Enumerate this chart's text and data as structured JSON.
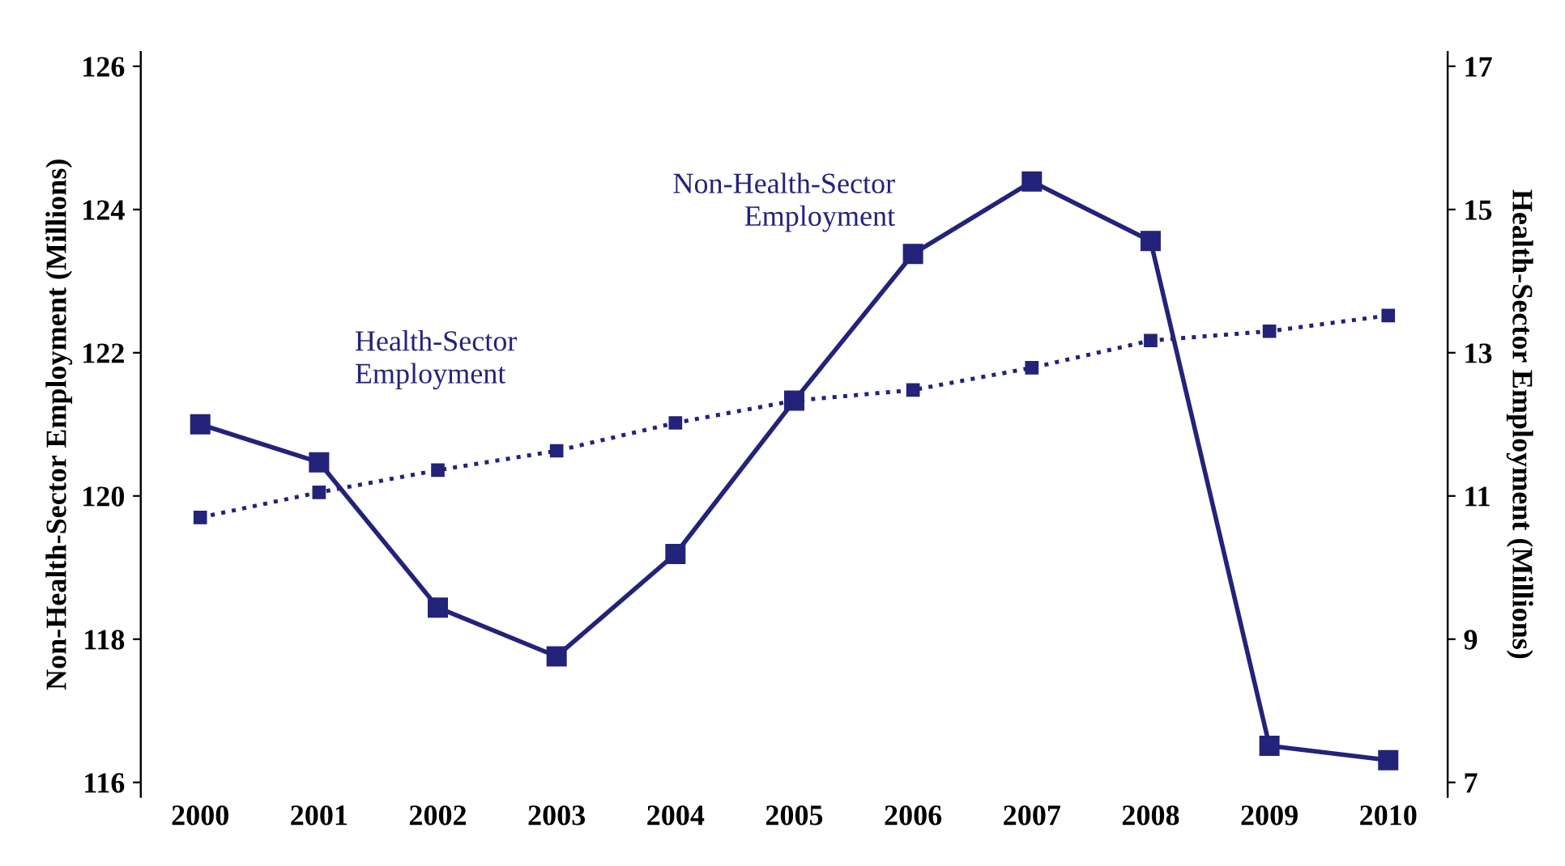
{
  "chart_data": {
    "type": "line",
    "categories": [
      "2000",
      "2001",
      "2002",
      "2003",
      "2004",
      "2005",
      "2006",
      "2007",
      "2008",
      "2009",
      "2010"
    ],
    "ylabel": "Non-Health-Sector Employment (Millions)",
    "y2label": "Health-Sector Employment (Millions)",
    "ylim": [
      115.8,
      126.2
    ],
    "yticks": [
      116,
      118,
      120,
      122,
      124,
      126
    ],
    "y2lim": [
      6.8,
      17.2
    ],
    "y2ticks": [
      7,
      9,
      11,
      13,
      15,
      17
    ],
    "marker": "square",
    "grid": false,
    "legend": false,
    "series": [
      {
        "name": "Non-Health-Sector Employment",
        "color": "#23237a",
        "line_style": "solid",
        "values": [
          121.0,
          120.47,
          118.44,
          117.76,
          119.19,
          121.33,
          123.38,
          124.39,
          123.56,
          116.51,
          116.31
        ]
      },
      {
        "name": "Health-Sector Employment",
        "color": "#23237a",
        "line_style": "dotted",
        "axis": "y2",
        "values": [
          10.7,
          11.05,
          11.36,
          11.63,
          12.02,
          12.33,
          12.48,
          12.79,
          13.17,
          13.3,
          13.52
        ]
      }
    ]
  }
}
